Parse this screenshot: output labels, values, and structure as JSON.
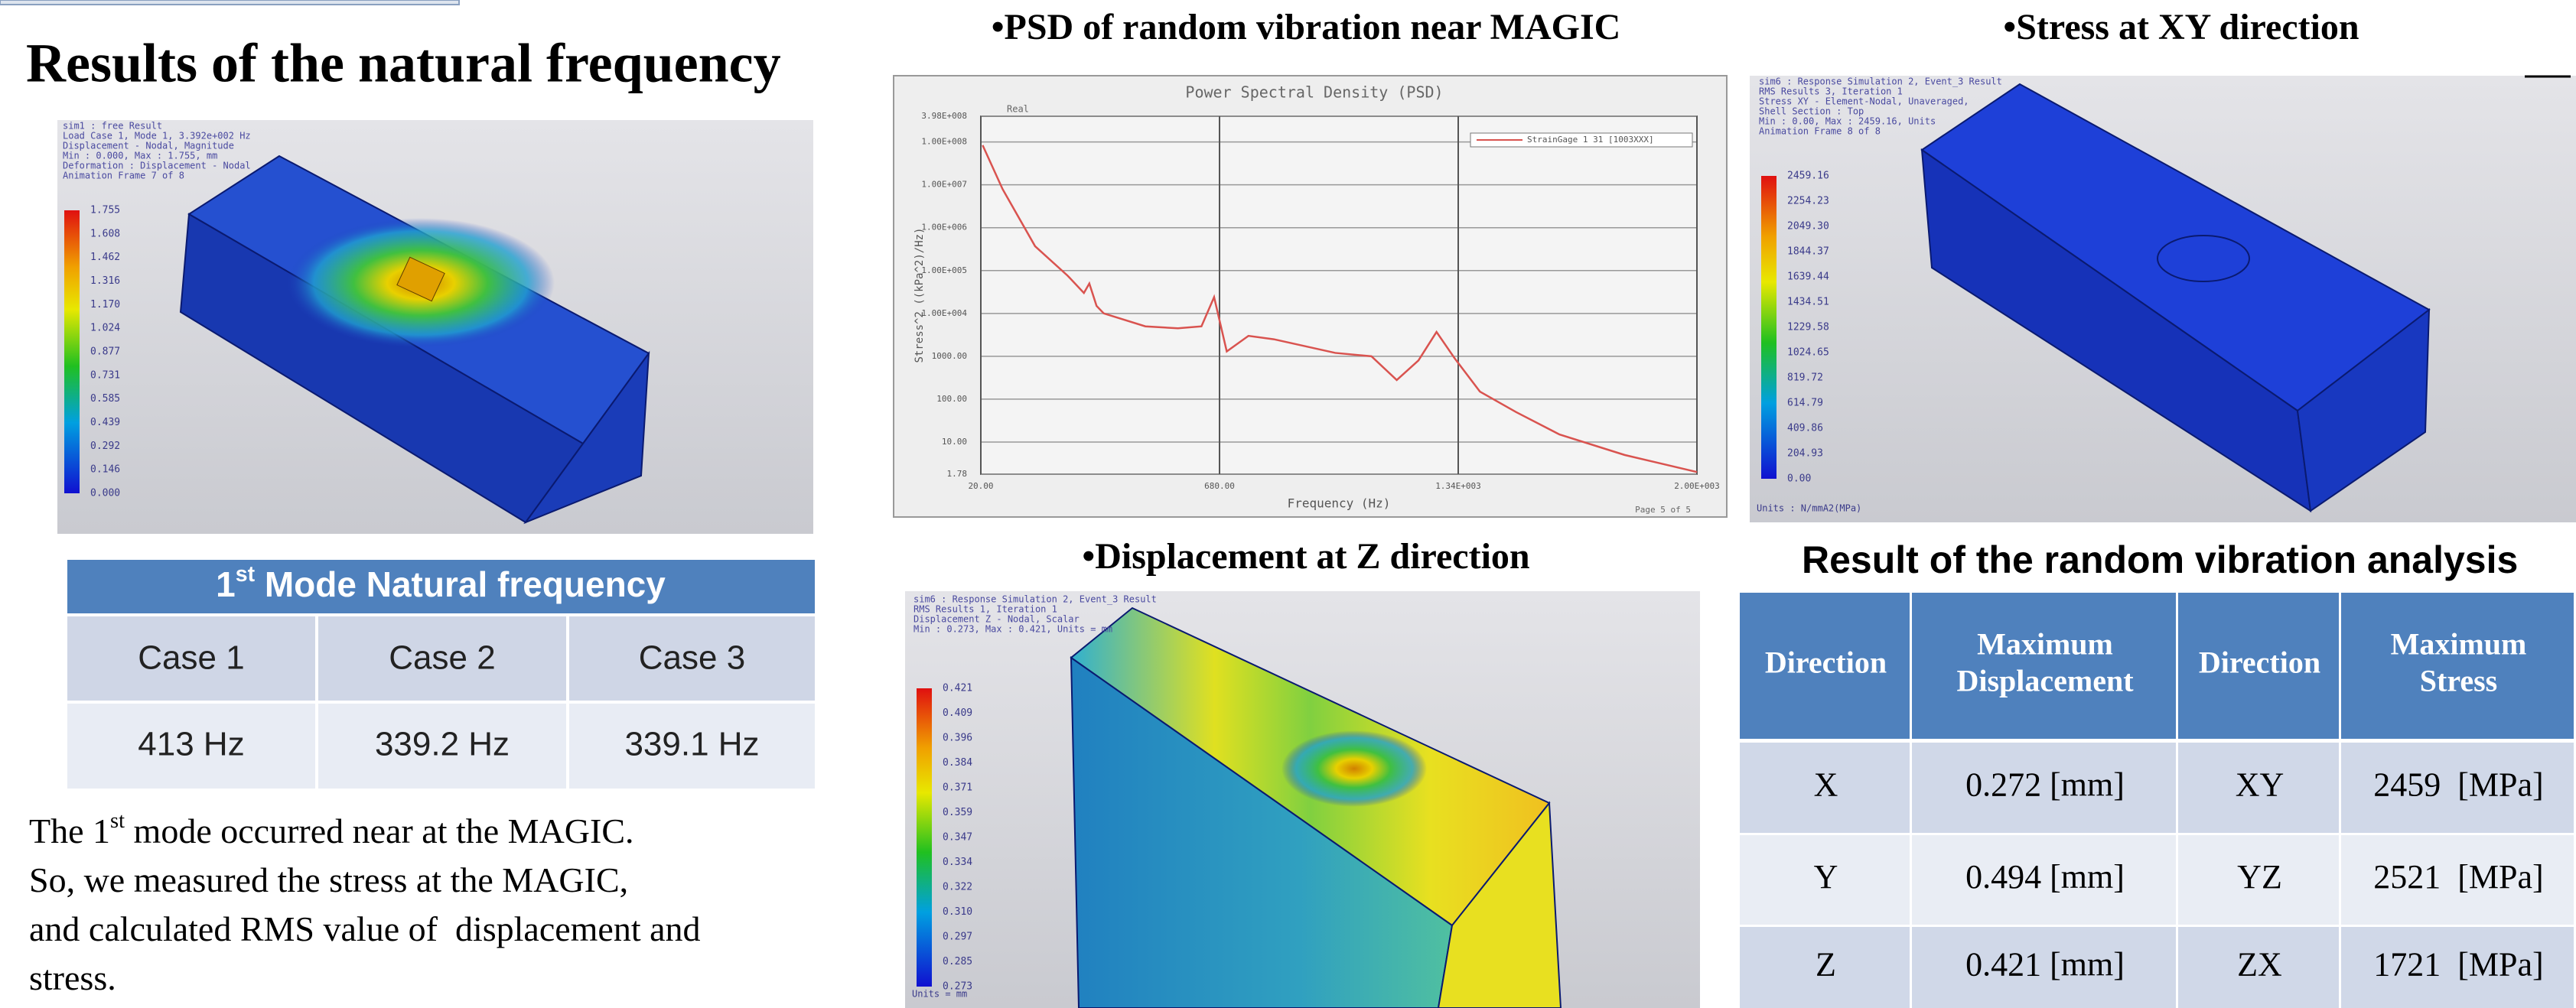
{
  "left": {
    "title": "Results of the natural frequency",
    "mode_image": {
      "header": [
        "sim1 : free Result",
        "Load Case 1, Mode 1, 3.392e+002 Hz",
        "Displacement - Nodal, Magnitude",
        "Min : 0.000, Max : 1.755, mm",
        "Deformation : Displacement - Nodal",
        "Animation Frame 7 of 8"
      ],
      "legend": [
        "1.755",
        "1.608",
        "1.462",
        "1.316",
        "1.170",
        "1.024",
        "0.877",
        "0.731",
        "0.585",
        "0.439",
        "0.292",
        "0.146",
        "0.000"
      ]
    },
    "freq_table": {
      "title": [
        "1",
        "st",
        " Mode Natural frequency"
      ],
      "header": [
        "Case 1",
        "Case 2",
        "Case 3"
      ],
      "values": [
        "413 Hz",
        "339.2 Hz",
        "339.1 Hz"
      ]
    },
    "note": [
      [
        "The 1",
        "st",
        " mode occurred near at the MAGIC."
      ],
      [
        "So, we measured the stress at the MAGIC,"
      ],
      [
        "and calculated RMS value of  displacement and"
      ],
      [
        "stress."
      ]
    ]
  },
  "psd": {
    "heading": "•PSD of random vibration near MAGIC",
    "chart_data": {
      "type": "line",
      "title": "Power Spectral Density (PSD)",
      "x_label": "Frequency (Hz)",
      "y_label": "Stress^2 ((kPa^2)/Hz)",
      "corner_label": "Real",
      "page_note": "Page 5 of 5",
      "x": [
        25,
        80,
        170,
        260,
        305,
        320,
        340,
        360,
        475,
        565,
        630,
        665,
        700,
        760,
        830,
        1000,
        1100,
        1170,
        1230,
        1280,
        1330,
        1400,
        1500,
        1620,
        1800,
        2000
      ],
      "series": [
        {
          "name": "StrainGage 1 31 [1003XXX]",
          "color": "#d9534f",
          "values": [
            84000000,
            8000000,
            370000,
            76000,
            30000,
            50000,
            15000,
            10000,
            5000,
            4500,
            5000,
            24000,
            1300,
            3000,
            2500,
            1200,
            1000,
            280,
            800,
            3700,
            900,
            150,
            50,
            15,
            5,
            2
          ]
        }
      ],
      "xlim": [
        20,
        2000
      ],
      "ylim": [
        1.78,
        398000000
      ],
      "log_y": true,
      "grid": true,
      "xticks": [
        {
          "value": 20,
          "label": "20.00"
        },
        {
          "value": 680,
          "label": "680.00"
        },
        {
          "value": 1340,
          "label": "1.34E+003"
        },
        {
          "value": 2000,
          "label": "2.00E+003"
        }
      ],
      "yticks": [
        {
          "value": 398000000,
          "label": "3.98E+008"
        },
        {
          "value": 100000000,
          "label": "1.00E+008"
        },
        {
          "value": 10000000,
          "label": "1.00E+007"
        },
        {
          "value": 1000000,
          "label": "1.00E+006"
        },
        {
          "value": 100000,
          "label": "1.00E+005"
        },
        {
          "value": 10000,
          "label": "1.00E+004"
        },
        {
          "value": 1000,
          "label": "1000.00"
        },
        {
          "value": 100,
          "label": "100.00"
        },
        {
          "value": 10,
          "label": "10.00"
        },
        {
          "value": 1.78,
          "label": "1.78"
        }
      ]
    }
  },
  "stress": {
    "heading": "•Stress at XY direction",
    "header": [
      "sim6 : Response Simulation 2, Event_3 Result",
      "RMS Results 3, Iteration 1",
      "Stress XY - Element-Nodal, Unaveraged,",
      "Shell Section : Top",
      "Min : 0.00, Max : 2459.16, Units",
      "Animation Frame 8 of 8"
    ],
    "legend": [
      "2459.16",
      "2254.23",
      "2049.30",
      "1844.37",
      "1639.44",
      "1434.51",
      "1229.58",
      "1024.65",
      "819.72",
      "614.79",
      "409.86",
      "204.93",
      "0.00"
    ],
    "units": "Units : N/mmA2(MPa)"
  },
  "displacement": {
    "heading": "•Displacement at Z direction",
    "header": [
      "sim6 : Response Simulation 2, Event_3 Result",
      "RMS Results 1, Iteration 1",
      "Displacement Z - Nodal, Scalar",
      "Min : 0.273, Max : 0.421, Units = mm"
    ],
    "legend": [
      "0.421",
      "0.409",
      "0.396",
      "0.384",
      "0.371",
      "0.359",
      "0.347",
      "0.334",
      "0.322",
      "0.310",
      "0.297",
      "0.285",
      "0.273"
    ],
    "units": "Units = mm"
  },
  "result_table": {
    "title": "Result of the random vibration analysis",
    "header": [
      [
        "Direction"
      ],
      [
        "Maximum",
        "Displacement"
      ],
      [
        "Direction"
      ],
      [
        "Maximum",
        "Stress"
      ]
    ],
    "rows": [
      [
        "X",
        "0.272 [mm]",
        "XY",
        "2459  [MPa]"
      ],
      [
        "Y",
        "0.494 [mm]",
        "YZ",
        "2521  [MPa]"
      ],
      [
        "Z",
        "0.421 [mm]",
        "ZX",
        "1721  [MPa]"
      ]
    ]
  }
}
